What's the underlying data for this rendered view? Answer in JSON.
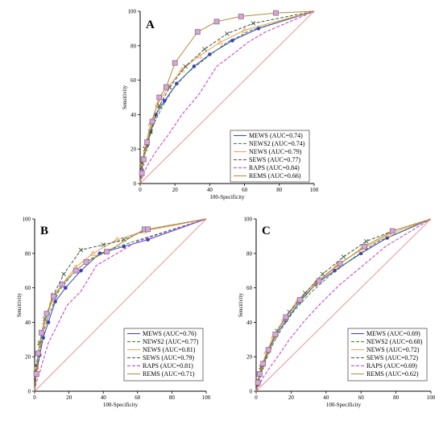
{
  "series_styles": [
    {
      "key": "MEWS",
      "color": "#3a3acc",
      "dash": "",
      "marker": "circle"
    },
    {
      "key": "NEWS2",
      "color": "#2e8b2e",
      "dash": "4,2",
      "marker": "none"
    },
    {
      "key": "NEWS",
      "color": "#e8a05a",
      "dash": "",
      "marker": "triangle"
    },
    {
      "key": "SEWS",
      "color": "#3d5c3d",
      "dash": "4,2",
      "marker": "cross"
    },
    {
      "key": "RAPS",
      "color": "#cc33cc",
      "dash": "4,2",
      "marker": "none"
    },
    {
      "key": "REMS",
      "color": "#b58a3a",
      "dash": "",
      "marker": "square"
    }
  ],
  "reference_color": "#e88a8a",
  "chart_data": [
    {
      "panel": "A",
      "type": "line",
      "xlabel": "100-Specificity",
      "ylabel": "Sensitivity",
      "xlim": [
        0,
        100
      ],
      "ylim": [
        0,
        100
      ],
      "xticks": [
        0,
        20,
        40,
        60,
        80,
        100
      ],
      "yticks": [
        0,
        20,
        40,
        60,
        80,
        100
      ],
      "legend_position": "bottom-right",
      "series": [
        {
          "name": "MEWS (AUC=0.74)",
          "points": [
            [
              0,
              0
            ],
            [
              1,
              8
            ],
            [
              2,
              15
            ],
            [
              4,
              22
            ],
            [
              6,
              30
            ],
            [
              9,
              40
            ],
            [
              14,
              48
            ],
            [
              21,
              58
            ],
            [
              31,
              68
            ],
            [
              40,
              75
            ],
            [
              53,
              83
            ],
            [
              68,
              90
            ],
            [
              100,
              100
            ]
          ]
        },
        {
          "name": "NEWS2 (AUC=0.74)",
          "points": [
            [
              0,
              0
            ],
            [
              1,
              10
            ],
            [
              3,
              18
            ],
            [
              5,
              26
            ],
            [
              8,
              35
            ],
            [
              13,
              45
            ],
            [
              19,
              55
            ],
            [
              27,
              64
            ],
            [
              38,
              73
            ],
            [
              50,
              82
            ],
            [
              64,
              89
            ],
            [
              100,
              100
            ]
          ]
        },
        {
          "name": "NEWS (AUC=0.79)",
          "points": [
            [
              0,
              0
            ],
            [
              1,
              12
            ],
            [
              3,
              22
            ],
            [
              6,
              35
            ],
            [
              10,
              46
            ],
            [
              16,
              56
            ],
            [
              24,
              66
            ],
            [
              34,
              74
            ],
            [
              46,
              82
            ],
            [
              60,
              89
            ],
            [
              100,
              100
            ]
          ]
        },
        {
          "name": "SEWS (AUC=0.77)",
          "points": [
            [
              0,
              0
            ],
            [
              1,
              12
            ],
            [
              3,
              20
            ],
            [
              6,
              30
            ],
            [
              11,
              45
            ],
            [
              17,
              56
            ],
            [
              26,
              68
            ],
            [
              37,
              78
            ],
            [
              50,
              87
            ],
            [
              65,
              93
            ],
            [
              100,
              100
            ]
          ]
        },
        {
          "name": "RAPS (AUC=0.84)",
          "points": [
            [
              0,
              0
            ],
            [
              2,
              6
            ],
            [
              5,
              12
            ],
            [
              10,
              20
            ],
            [
              16,
              28
            ],
            [
              24,
              40
            ],
            [
              34,
              52
            ],
            [
              44,
              68
            ],
            [
              52,
              74
            ],
            [
              62,
              82
            ],
            [
              72,
              88
            ],
            [
              100,
              100
            ]
          ]
        },
        {
          "name": "REMS (AUC=0.66)",
          "points": [
            [
              0,
              0
            ],
            [
              1,
              6
            ],
            [
              2,
              14
            ],
            [
              4,
              24
            ],
            [
              7,
              36
            ],
            [
              11,
              50
            ],
            [
              15,
              56
            ],
            [
              20,
              70
            ],
            [
              33,
              88
            ],
            [
              44,
              94
            ],
            [
              58,
              97
            ],
            [
              78,
              99
            ],
            [
              100,
              100
            ]
          ]
        }
      ]
    },
    {
      "panel": "B",
      "type": "line",
      "xlabel": "100-Specificity",
      "ylabel": "Sensitivity",
      "xlim": [
        0,
        100
      ],
      "ylim": [
        0,
        100
      ],
      "xticks": [
        0,
        20,
        40,
        60,
        80,
        100
      ],
      "yticks": [
        0,
        20,
        40,
        60,
        80,
        100
      ],
      "legend_position": "bottom-right",
      "series": [
        {
          "name": "MEWS (AUC=0.76)",
          "points": [
            [
              0,
              0
            ],
            [
              1,
              10
            ],
            [
              3,
              21
            ],
            [
              5,
              31
            ],
            [
              8,
              40
            ],
            [
              12,
              52
            ],
            [
              18,
              60
            ],
            [
              27,
              70
            ],
            [
              38,
              80
            ],
            [
              52,
              84
            ],
            [
              66,
              88
            ],
            [
              100,
              100
            ]
          ]
        },
        {
          "name": "NEWS2 (AUC=0.77)",
          "points": [
            [
              0,
              0
            ],
            [
              1,
              12
            ],
            [
              3,
              24
            ],
            [
              5,
              34
            ],
            [
              9,
              46
            ],
            [
              14,
              58
            ],
            [
              22,
              68
            ],
            [
              31,
              76
            ],
            [
              43,
              82
            ],
            [
              58,
              87
            ],
            [
              100,
              100
            ]
          ]
        },
        {
          "name": "NEWS (AUC=0.81)",
          "points": [
            [
              0,
              0
            ],
            [
              1,
              14
            ],
            [
              3,
              28
            ],
            [
              6,
              40
            ],
            [
              10,
              52
            ],
            [
              16,
              62
            ],
            [
              24,
              72
            ],
            [
              34,
              80
            ],
            [
              48,
              88
            ],
            [
              64,
              93
            ],
            [
              100,
              100
            ]
          ]
        },
        {
          "name": "SEWS (AUC=0.79)",
          "points": [
            [
              0,
              0
            ],
            [
              1,
              15
            ],
            [
              3,
              28
            ],
            [
              6,
              42
            ],
            [
              11,
              56
            ],
            [
              17,
              68
            ],
            [
              27,
              82
            ],
            [
              40,
              85
            ],
            [
              52,
              88
            ],
            [
              66,
              94
            ],
            [
              100,
              100
            ]
          ]
        },
        {
          "name": "RAPS (AUC=0.81)",
          "points": [
            [
              0,
              0
            ],
            [
              1,
              5
            ],
            [
              3,
              11
            ],
            [
              5,
              18
            ],
            [
              8,
              28
            ],
            [
              13,
              38
            ],
            [
              19,
              50
            ],
            [
              27,
              58
            ],
            [
              36,
              73
            ],
            [
              48,
              80
            ],
            [
              60,
              87
            ],
            [
              100,
              100
            ]
          ]
        },
        {
          "name": "REMS (AUC=0.71)",
          "points": [
            [
              0,
              0
            ],
            [
              1,
              10
            ],
            [
              2,
              22
            ],
            [
              4,
              34
            ],
            [
              7,
              45
            ],
            [
              11,
              55
            ],
            [
              16,
              62
            ],
            [
              24,
              70
            ],
            [
              30,
              75
            ],
            [
              42,
              81
            ],
            [
              64,
              94
            ],
            [
              66,
              94
            ],
            [
              100,
              100
            ]
          ]
        }
      ]
    },
    {
      "panel": "C",
      "type": "line",
      "xlabel": "100-Specificity",
      "ylabel": "Sensitivity",
      "xlim": [
        0,
        100
      ],
      "ylim": [
        0,
        100
      ],
      "xticks": [
        0,
        20,
        40,
        60,
        80,
        100
      ],
      "yticks": [
        0,
        20,
        40,
        60,
        80,
        100
      ],
      "legend_position": "bottom-right",
      "series": [
        {
          "name": "MEWS (AUC=0.69)",
          "points": [
            [
              0,
              0
            ],
            [
              1,
              4
            ],
            [
              2,
              9
            ],
            [
              4,
              15
            ],
            [
              7,
              23
            ],
            [
              11,
              32
            ],
            [
              17,
              41
            ],
            [
              25,
              52
            ],
            [
              34,
              62
            ],
            [
              45,
              70
            ],
            [
              60,
              80
            ],
            [
              75,
              89
            ],
            [
              100,
              100
            ]
          ]
        },
        {
          "name": "NEWS2 (AUC=0.68)",
          "points": [
            [
              0,
              0
            ],
            [
              1,
              5
            ],
            [
              3,
              11
            ],
            [
              6,
              19
            ],
            [
              10,
              28
            ],
            [
              15,
              37
            ],
            [
              22,
              47
            ],
            [
              31,
              57
            ],
            [
              42,
              67
            ],
            [
              55,
              77
            ],
            [
              70,
              87
            ],
            [
              100,
              100
            ]
          ]
        },
        {
          "name": "NEWS (AUC=0.72)",
          "points": [
            [
              0,
              0
            ],
            [
              1,
              6
            ],
            [
              3,
              14
            ],
            [
              6,
              23
            ],
            [
              10,
              32
            ],
            [
              16,
              42
            ],
            [
              24,
              53
            ],
            [
              34,
              63
            ],
            [
              46,
              73
            ],
            [
              60,
              82
            ],
            [
              76,
              91
            ],
            [
              100,
              100
            ]
          ]
        },
        {
          "name": "SEWS (AUC=0.72)",
          "points": [
            [
              0,
              0
            ],
            [
              1,
              6
            ],
            [
              3,
              14
            ],
            [
              7,
              24
            ],
            [
              12,
              35
            ],
            [
              19,
              46
            ],
            [
              28,
              57
            ],
            [
              38,
              68
            ],
            [
              50,
              78
            ],
            [
              63,
              87
            ],
            [
              78,
              93
            ],
            [
              100,
              100
            ]
          ]
        },
        {
          "name": "RAPS (AUC=0.69)",
          "points": [
            [
              0,
              0
            ],
            [
              2,
              4
            ],
            [
              4,
              8
            ],
            [
              8,
              14
            ],
            [
              13,
              21
            ],
            [
              19,
              30
            ],
            [
              27,
              40
            ],
            [
              36,
              50
            ],
            [
              48,
              62
            ],
            [
              60,
              72
            ],
            [
              74,
              84
            ],
            [
              100,
              100
            ]
          ]
        },
        {
          "name": "REMS (AUC=0.62)",
          "points": [
            [
              0,
              0
            ],
            [
              1,
              5
            ],
            [
              2,
              10
            ],
            [
              4,
              16
            ],
            [
              7,
              24
            ],
            [
              11,
              33
            ],
            [
              17,
              43
            ],
            [
              25,
              53
            ],
            [
              36,
              64
            ],
            [
              48,
              74
            ],
            [
              62,
              84
            ],
            [
              78,
              93
            ],
            [
              100,
              100
            ]
          ]
        }
      ]
    }
  ]
}
